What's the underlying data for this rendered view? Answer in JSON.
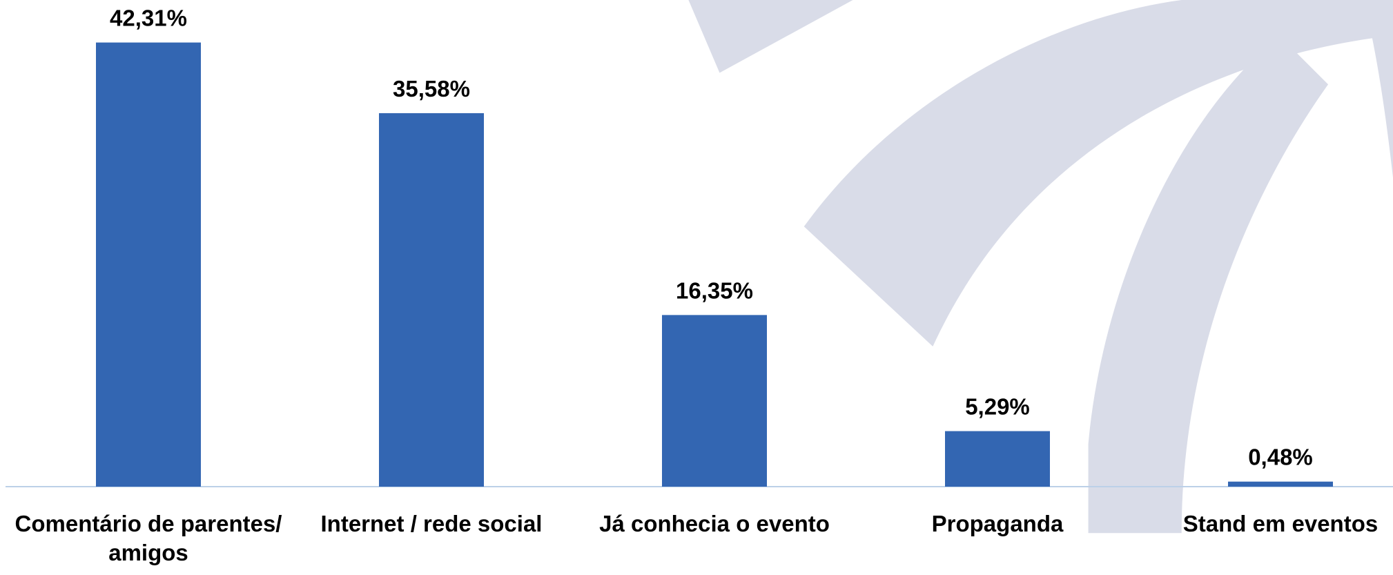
{
  "chart_data": {
    "type": "bar",
    "categories": [
      "Comentário de parentes/ amigos",
      "Internet / rede social",
      "Já conhecia o evento",
      "Propaganda",
      "Stand em eventos"
    ],
    "values": [
      42.31,
      35.58,
      16.35,
      5.29,
      0.48
    ],
    "value_labels": [
      "42,31%",
      "35,58%",
      "16,35%",
      "5,29%",
      "0,48%"
    ],
    "color": "#3366b2",
    "ylim": [
      0,
      46.36
    ]
  }
}
